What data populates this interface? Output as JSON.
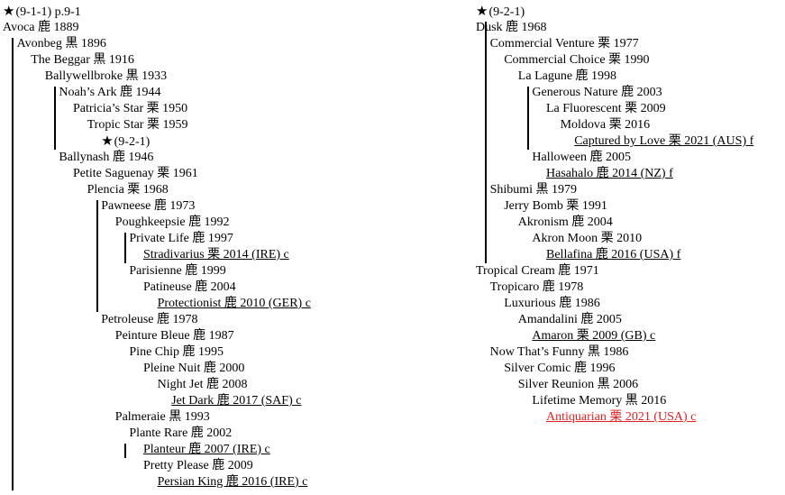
{
  "left_column": [
    {
      "text": "(9-1-1) p.9-1",
      "star": true,
      "indent": 0,
      "row": 0
    },
    {
      "text": "Avoca 鹿 1889",
      "indent": 0,
      "row": 1
    },
    {
      "text": "Avonbeg 黒 1896",
      "indent": 1,
      "row": 2
    },
    {
      "text": "The Beggar 黒 1916",
      "indent": 2,
      "row": 3
    },
    {
      "text": "Ballywellbroke 黒 1933",
      "indent": 3,
      "row": 4
    },
    {
      "text": "Noah’s Ark 鹿 1944",
      "indent": 4,
      "row": 5
    },
    {
      "text": "Patricia’s Star 栗 1950",
      "indent": 5,
      "row": 6
    },
    {
      "text": "Tropic Star 栗 1959",
      "indent": 6,
      "row": 7
    },
    {
      "text": "(9-2-1)",
      "star": true,
      "indent": 7,
      "row": 8
    },
    {
      "text": "Ballynash 鹿 1946",
      "indent": 4,
      "row": 9
    },
    {
      "text": "Petite Saguenay 栗 1961",
      "indent": 5,
      "row": 10
    },
    {
      "text": "Plencia 栗 1968",
      "indent": 6,
      "row": 11
    },
    {
      "text": "Pawneese 鹿 1973",
      "indent": 7,
      "row": 12
    },
    {
      "text": "Poughkeepsie 鹿 1992",
      "indent": 8,
      "row": 13
    },
    {
      "text": "Private Life 鹿 1997",
      "indent": 9,
      "row": 14
    },
    {
      "text": "Stradivarius 栗 2014 (IRE) c",
      "indent": 10,
      "row": 15,
      "underline": true
    },
    {
      "text": "Parisienne 鹿 1999",
      "indent": 9,
      "row": 16
    },
    {
      "text": "Patineuse 鹿 2004",
      "indent": 10,
      "row": 17
    },
    {
      "text": "Protectionist 鹿 2010 (GER) c",
      "indent": 11,
      "row": 18,
      "underline": true
    },
    {
      "text": "Petroleuse 鹿 1978",
      "indent": 7,
      "row": 19
    },
    {
      "text": "Peinture Bleue 鹿 1987",
      "indent": 8,
      "row": 20
    },
    {
      "text": "Pine Chip 鹿 1995",
      "indent": 9,
      "row": 21
    },
    {
      "text": "Pleine Nuit 鹿 2000",
      "indent": 10,
      "row": 22
    },
    {
      "text": "Night Jet 鹿 2008",
      "indent": 11,
      "row": 23
    },
    {
      "text": "Jet Dark 鹿 2017 (SAF) c",
      "indent": 12,
      "row": 24,
      "underline": true
    },
    {
      "text": "Palmeraie 黒 1993",
      "indent": 8,
      "row": 25
    },
    {
      "text": "Plante Rare 鹿 2002",
      "indent": 9,
      "row": 26
    },
    {
      "text": "Planteur 鹿 2007 (IRE) c",
      "indent": 10,
      "row": 27,
      "underline": true
    },
    {
      "text": "Pretty Please 鹿 2009",
      "indent": 10,
      "row": 28
    },
    {
      "text": "Persian King 鹿 2016 (IRE) c",
      "indent": 11,
      "row": 29,
      "underline": true
    }
  ],
  "right_column": [
    {
      "text": "(9-2-1)",
      "star": true,
      "indent": 0,
      "row": 0
    },
    {
      "text": "Dusk 鹿 1968",
      "indent": 0,
      "row": 1
    },
    {
      "text": "Commercial Venture 栗 1977",
      "indent": 1,
      "row": 2
    },
    {
      "text": "Commercial Choice 栗 1990",
      "indent": 2,
      "row": 3
    },
    {
      "text": "La Lagune 鹿 1998",
      "indent": 3,
      "row": 4
    },
    {
      "text": "Generous Nature 鹿 2003",
      "indent": 4,
      "row": 5
    },
    {
      "text": "La Fluorescent 栗 2009",
      "indent": 5,
      "row": 6
    },
    {
      "text": "Moldova 栗 2016",
      "indent": 6,
      "row": 7
    },
    {
      "text": "Captured by Love 栗 2021 (AUS) f",
      "indent": 7,
      "row": 8,
      "underline": true
    },
    {
      "text": "Halloween 鹿 2005",
      "indent": 4,
      "row": 9
    },
    {
      "text": "Hasahalo 鹿 2014 (NZ) f",
      "indent": 5,
      "row": 10,
      "underline": true
    },
    {
      "text": "Shibumi 黒 1979",
      "indent": 1,
      "row": 11
    },
    {
      "text": "Jerry Bomb 栗 1991",
      "indent": 2,
      "row": 12
    },
    {
      "text": "Akronism 鹿 2004",
      "indent": 3,
      "row": 13
    },
    {
      "text": "Akron Moon 栗 2010",
      "indent": 4,
      "row": 14
    },
    {
      "text": "Bellafina 鹿 2016 (USA) f",
      "indent": 5,
      "row": 15,
      "underline": true
    },
    {
      "text": "Tropical Cream 鹿 1971",
      "indent": 0,
      "row": 16
    },
    {
      "text": "Tropicaro 鹿 1978",
      "indent": 1,
      "row": 17
    },
    {
      "text": "Luxurious 鹿 1986",
      "indent": 2,
      "row": 18
    },
    {
      "text": "Amandalini 鹿 2005",
      "indent": 3,
      "row": 19
    },
    {
      "text": "Amaron 栗 2009 (GB) c",
      "indent": 4,
      "row": 20,
      "underline": true
    },
    {
      "text": "Now That’s Funny 黒 1986",
      "indent": 1,
      "row": 21
    },
    {
      "text": "Silver Comic 鹿 1996",
      "indent": 2,
      "row": 22
    },
    {
      "text": "Silver Reunion 黒 2006",
      "indent": 3,
      "row": 23
    },
    {
      "text": "Lifetime Memory 黒 2016",
      "indent": 4,
      "row": 24
    },
    {
      "text": "Antiquarian 栗 2021 (USA) c",
      "indent": 5,
      "row": 25,
      "underline": true,
      "red": true
    }
  ],
  "bars_left": [
    {
      "level": 0,
      "from": 2,
      "to": 30
    },
    {
      "level": 3,
      "from": 5,
      "to": 9
    },
    {
      "level": 6,
      "from": 12,
      "to": 19
    },
    {
      "level": 8,
      "from": 14,
      "to": 16
    },
    {
      "level": 8,
      "from": 27,
      "to": 28
    }
  ],
  "bars_right": [
    {
      "level": 0,
      "from": 1,
      "to": 16
    },
    {
      "level": 3,
      "from": 5,
      "to": 9
    }
  ],
  "colors": {
    "text": "#000000",
    "highlight": "#e02020",
    "background": "#ffffff"
  },
  "icons": {
    "marker": "star-icon"
  }
}
